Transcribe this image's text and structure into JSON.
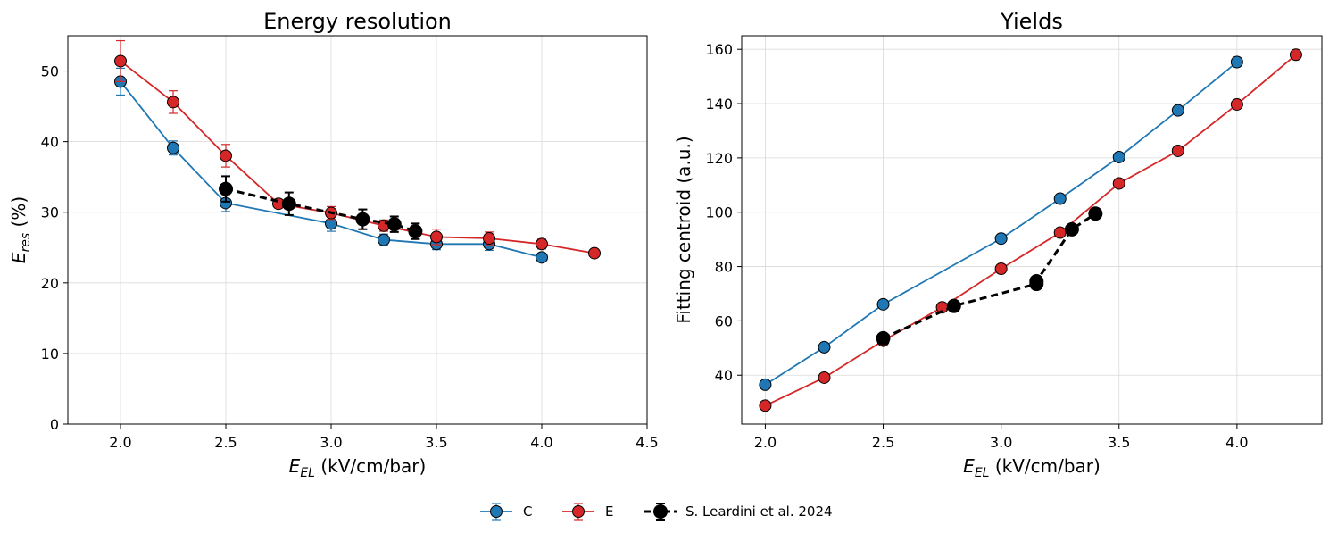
{
  "chart_data": [
    {
      "type": "line",
      "title": "Energy resolution",
      "xlabel": {
        "main": "E",
        "sub": "EL",
        "units": " (kV/cm/bar)"
      },
      "ylabel": {
        "main": "E",
        "sub": "res",
        "units": " (%)"
      },
      "xlim": [
        1.75,
        4.5
      ],
      "ylim": [
        0,
        55
      ],
      "xticks": [
        2.0,
        2.5,
        3.0,
        3.5,
        4.0,
        4.5
      ],
      "xtick_labels": [
        "2.0",
        "2.5",
        "3.0",
        "3.5",
        "4.0",
        "4.5"
      ],
      "yticks": [
        0,
        10,
        20,
        30,
        40,
        50
      ],
      "ytick_labels": [
        "0",
        "10",
        "20",
        "30",
        "40",
        "50"
      ],
      "grid": true,
      "series": [
        {
          "name": "C",
          "color": "#1f77b4",
          "dashed": false,
          "x": [
            2.0,
            2.25,
            2.5,
            3.0,
            3.25,
            3.5,
            3.75,
            4.0
          ],
          "y": [
            48.5,
            39.1,
            31.3,
            28.4,
            26.1,
            25.5,
            25.5,
            23.6
          ],
          "err": [
            1.9,
            1.0,
            1.2,
            1.1,
            0.8,
            0.8,
            0.9,
            0.6
          ]
        },
        {
          "name": "E",
          "color": "#d62728",
          "dashed": false,
          "x": [
            2.0,
            2.25,
            2.5,
            2.75,
            3.0,
            3.25,
            3.5,
            3.75,
            4.0,
            4.25
          ],
          "y": [
            51.4,
            45.6,
            38.0,
            31.2,
            29.9,
            28.1,
            26.5,
            26.3,
            25.5,
            24.2
          ],
          "err": [
            2.9,
            1.6,
            1.6,
            0.6,
            0.9,
            0.8,
            1.1,
            0.9,
            0.7,
            0.5
          ]
        },
        {
          "name": "S. Leardini et al. 2024",
          "color": "#000000",
          "dashed": true,
          "x": [
            2.5,
            2.8,
            3.15,
            3.3,
            3.4
          ],
          "y": [
            33.3,
            31.2,
            29.0,
            28.3,
            27.3
          ],
          "err": [
            1.8,
            1.6,
            1.4,
            1.1,
            1.1
          ]
        }
      ]
    },
    {
      "type": "line",
      "title": "Yields",
      "xlabel": {
        "main": "E",
        "sub": "EL",
        "units": " (kV/cm/bar)"
      },
      "ylabel": {
        "main": "Fitting centroid (a.u.)",
        "sub": "",
        "units": ""
      },
      "xlim": [
        1.9,
        4.36
      ],
      "ylim": [
        22,
        165
      ],
      "xticks": [
        2.0,
        2.5,
        3.0,
        3.5,
        4.0
      ],
      "xtick_labels": [
        "2.0",
        "2.5",
        "3.0",
        "3.5",
        "4.0"
      ],
      "yticks": [
        40,
        60,
        80,
        100,
        120,
        140,
        160
      ],
      "ytick_labels": [
        "40",
        "60",
        "80",
        "100",
        "120",
        "140",
        "160"
      ],
      "grid": true,
      "series": [
        {
          "name": "C",
          "color": "#1f77b4",
          "dashed": false,
          "x": [
            2.0,
            2.25,
            2.5,
            3.0,
            3.25,
            3.5,
            3.75,
            4.0
          ],
          "y": [
            36.5,
            50.3,
            66.1,
            90.3,
            105.0,
            120.3,
            137.5,
            155.3
          ]
        },
        {
          "name": "E",
          "color": "#d62728",
          "dashed": false,
          "x": [
            2.0,
            2.25,
            2.5,
            2.75,
            3.0,
            3.25,
            3.5,
            3.75,
            4.0,
            4.25
          ],
          "y": [
            28.8,
            39.1,
            52.7,
            65.0,
            79.2,
            92.5,
            110.6,
            122.6,
            139.7,
            158.0
          ]
        },
        {
          "name": "S. Leardini et al. 2024",
          "color": "#000000",
          "dashed": true,
          "x": [
            2.5,
            2.8,
            3.15,
            3.15,
            3.3,
            3.4
          ],
          "y": [
            53.6,
            65.5,
            73.6,
            74.6,
            93.7,
            99.5
          ]
        }
      ]
    }
  ],
  "legend": {
    "placement": "bottom-center",
    "entries": [
      {
        "label": "C",
        "color": "#1f77b4",
        "dashed": false
      },
      {
        "label": "E",
        "color": "#d62728",
        "dashed": false
      },
      {
        "label": "S. Leardini et al. 2024",
        "color": "#000000",
        "dashed": true
      }
    ]
  }
}
